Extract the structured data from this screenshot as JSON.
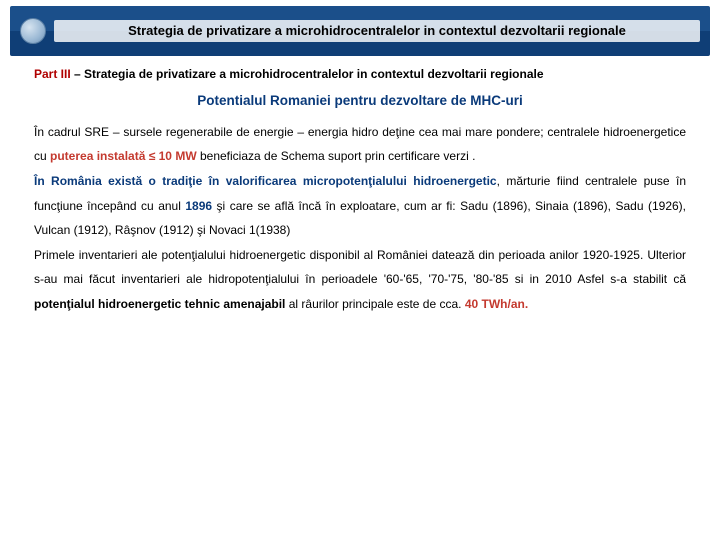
{
  "header": {
    "title": "Strategia de privatizare a microhidrocentralelor in contextul dezvoltarii regionale"
  },
  "part": {
    "label": "Part III",
    "separator": " – ",
    "text": "Strategia de privatizare a microhidrocentralelor in contextul dezvoltarii regionale"
  },
  "subtitle": "Potentialul Romaniei pentru dezvoltare de MHC-uri",
  "p1": {
    "a": "În cadrul SRE – sursele regenerabile de energie – energia hidro deţine cea mai mare pondere; centralele hidroenergetice cu ",
    "hl": "puterea instalată ≤ 10 MW",
    "b": " beneficiaza de Schema suport prin certificare verzi ."
  },
  "p2": {
    "lead": "În România există o tradiţie în valorificarea micropotenţialului hidroenergetic",
    "a": ", mărturie fiind centralele puse în funcţiune începând cu anul ",
    "year": "1896",
    "b": " şi care se află încă în exploatare, cum ar fi: Sadu (1896), Sinaia (1896), Sadu (1926), Vulcan (1912), Râşnov (1912) şi Novaci 1(1938)"
  },
  "p3": {
    "a": "Primele inventarieri ale potenţialului hidroenergetic disponibil al României datează din perioada anilor 1920-1925. Ulterior s-au mai făcut inventarieri ale hidropotenţialului în perioadele '60-'65, '70-'75, '80-'85 si in 2010 Asfel s-a stabilit că ",
    "hl1": "potenţialul hidroenergetic tehnic amenajabil",
    "b": " al râurilor principale este de cca. ",
    "hl2": "40 TWh/an."
  },
  "colors": {
    "banner_top": "#1b4f8a",
    "banner_bottom": "#0f3e76",
    "red": "#b00000",
    "hl_red": "#c43a2f",
    "blue": "#0a3a7a",
    "text": "#000000",
    "bg": "#ffffff"
  }
}
